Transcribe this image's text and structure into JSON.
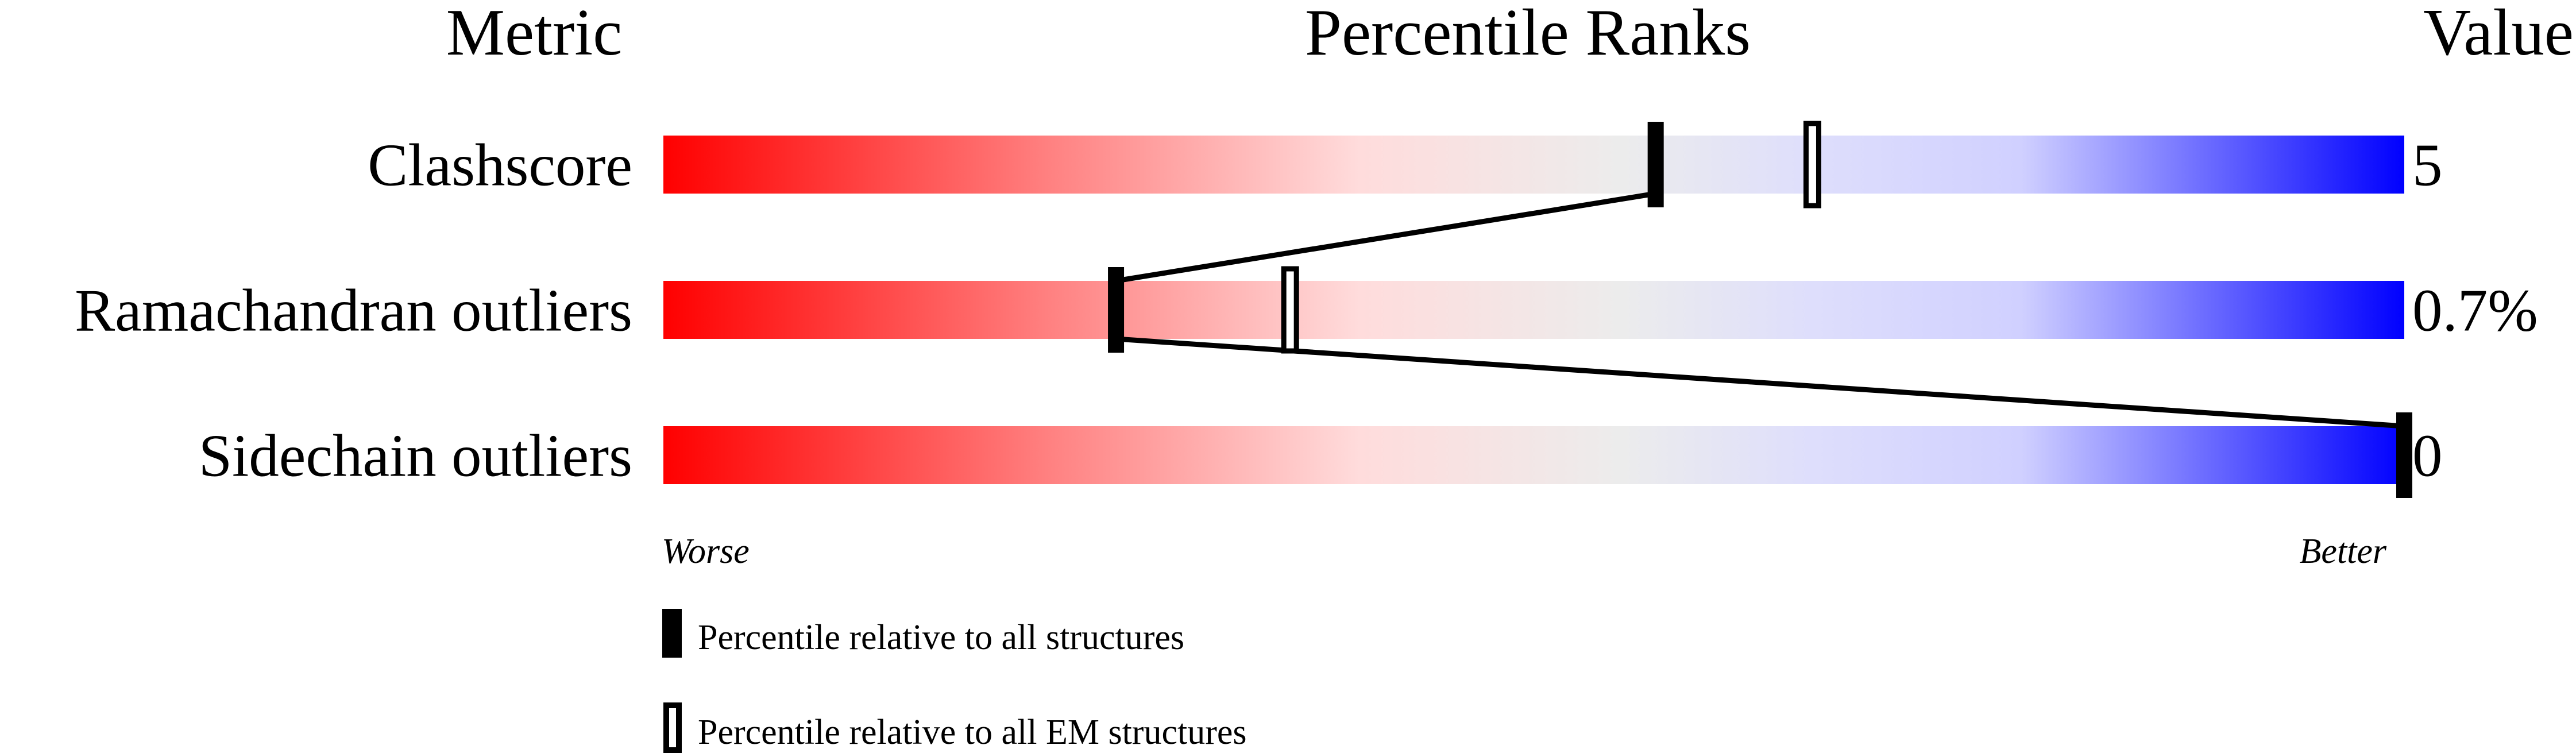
{
  "chart_data": {
    "type": "percentile-bar",
    "headers": {
      "metric": "Metric",
      "ranks": "Percentile Ranks",
      "value": "Value"
    },
    "xlim": [
      0,
      100
    ],
    "rows": [
      {
        "metric": "Clashscore",
        "value": "5",
        "percentile_all": 57,
        "percentile_em": 66
      },
      {
        "metric": "Ramachandran outliers",
        "value": "0.7%",
        "percentile_all": 26,
        "percentile_em": 36
      },
      {
        "metric": "Sidechain outliers",
        "value": "0",
        "percentile_all": 100,
        "percentile_em": null
      }
    ],
    "axis": {
      "worse": "Worse",
      "better": "Better"
    },
    "legend": {
      "all": "Percentile relative to all structures",
      "em": "Percentile relative to all EM structures"
    },
    "colors": {
      "worse": "#ff0000",
      "middle": "#ececec",
      "better": "#0000ff",
      "marker": "#000000"
    }
  }
}
